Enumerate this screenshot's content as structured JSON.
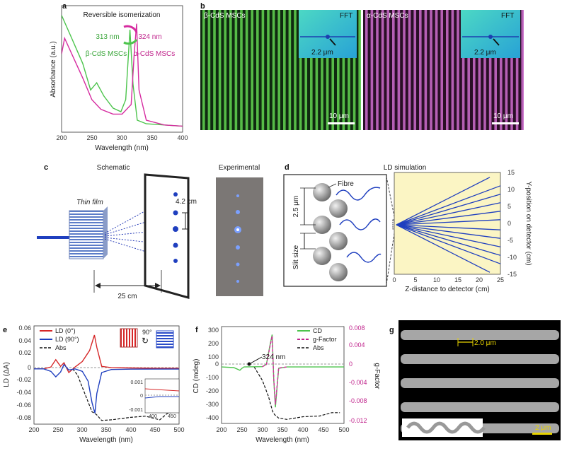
{
  "panels": {
    "a": {
      "label": "a",
      "ylabel": "Absorbance (a.u.)",
      "xlabel": "Wavelength (nm)",
      "xticks": [
        "200",
        "250",
        "300",
        "350",
        "400"
      ],
      "title": "Reversible isomerization",
      "arrow_left": "313 nm",
      "arrow_right": "324 nm",
      "legend_beta": "β-CdS MSCs",
      "legend_alpha": "α-CdS MSCs"
    },
    "b": {
      "label": "b",
      "image1": {
        "title": "β-CdS MSCs",
        "fft": "FFT",
        "spacing": "2.2 μm",
        "scale": "10 μm"
      },
      "image2": {
        "title": "α-CdS MSCs",
        "fft": "FFT",
        "spacing": "2.2 μm",
        "scale": "10 μm"
      }
    },
    "c": {
      "label": "c",
      "schematic": "Schematic",
      "experimental": "Experimental",
      "thin_film": "Thin film",
      "spot_distance": "4.2 cm",
      "screen_distance": "25 cm"
    },
    "d": {
      "label": "d",
      "title": "LD simulation",
      "fibre": "Fibre",
      "pitch": "2.5 μm",
      "slit": "Slit size",
      "xlabel": "Z-distance to detector (cm)",
      "ylabel": "Y-position on detector (cm)",
      "xticks": [
        "0",
        "5",
        "10",
        "15",
        "20",
        "25"
      ],
      "yticks": [
        "15",
        "10",
        "5",
        "0",
        "-5",
        "-10",
        "-15"
      ]
    },
    "e": {
      "label": "e",
      "ylabel": "LD (ΔA)",
      "xlabel": "Wavelength (nm)",
      "yticks": [
        "0.06",
        "0.04",
        "0.02",
        "0",
        "-0.02",
        "-0.04",
        "-0.06",
        "-0.08"
      ],
      "xticks": [
        "200",
        "250",
        "300",
        "350",
        "400",
        "450",
        "500"
      ],
      "legend": [
        "LD (0°)",
        "LD (90°)",
        "Abs"
      ],
      "rot": "90°",
      "inset": {
        "yticks": [
          "0.001",
          "0",
          "-0.001"
        ],
        "xticks": [
          "400",
          "450"
        ]
      }
    },
    "f": {
      "label": "f",
      "ylabel": "CD (mdeg)",
      "y2label": "g-Factor",
      "xlabel": "Wavelength (nm)",
      "yticks": [
        "300",
        "200",
        "100",
        "0",
        "-100",
        "-200",
        "-300",
        "-400"
      ],
      "y2ticks": [
        "0.008",
        "0.004",
        "0",
        "-0.004",
        "-0.008",
        "-0.012"
      ],
      "xticks": [
        "200",
        "250",
        "300",
        "350",
        "400",
        "450",
        "500"
      ],
      "legend": [
        "CD",
        "g-Factor",
        "Abs"
      ],
      "peak": "324 nm"
    },
    "g": {
      "label": "g",
      "spacing": "2.0 μm",
      "scale": "2 μm"
    }
  },
  "colors": {
    "beta": "#4cc44c",
    "alpha": "#d62ca0",
    "ld0": "#d62728",
    "ld90": "#1f3fbf",
    "sim_bg": "#fbf5c4"
  },
  "chart_data": [
    {
      "type": "line",
      "panel": "a",
      "xlabel": "Wavelength (nm)",
      "ylabel": "Absorbance (a.u.)",
      "xlim": [
        200,
        400
      ],
      "series": [
        {
          "name": "β-CdS MSCs",
          "x": [
            200,
            215,
            235,
            248,
            258,
            270,
            285,
            298,
            306,
            313,
            318,
            325,
            340,
            370,
            400
          ],
          "y": [
            0.92,
            0.75,
            0.52,
            0.3,
            0.36,
            0.25,
            0.15,
            0.12,
            0.22,
            0.8,
            0.35,
            0.05,
            0.02,
            0.01,
            0.0
          ]
        },
        {
          "name": "α-CdS MSCs",
          "x": [
            200,
            205,
            215,
            235,
            250,
            265,
            285,
            300,
            315,
            320,
            324,
            328,
            340,
            370,
            400
          ],
          "y": [
            0.6,
            0.73,
            0.62,
            0.4,
            0.22,
            0.14,
            0.1,
            0.1,
            0.18,
            0.6,
            0.85,
            0.3,
            0.05,
            0.01,
            0.0
          ]
        }
      ]
    },
    {
      "type": "line",
      "panel": "e",
      "xlabel": "Wavelength (nm)",
      "ylabel": "LD (ΔA)",
      "xlim": [
        200,
        500
      ],
      "ylim": [
        -0.09,
        0.07
      ],
      "series": [
        {
          "name": "LD (0°)",
          "x": [
            200,
            220,
            235,
            245,
            255,
            262,
            272,
            285,
            300,
            315,
            325,
            330,
            340,
            360,
            400,
            450,
            500
          ],
          "y": [
            0,
            0,
            0.003,
            0.015,
            0.004,
            0.01,
            -0.006,
            0.003,
            0.012,
            0.03,
            0.055,
            0.035,
            0.004,
            0.002,
            0.0015,
            0.001,
            0.0008
          ]
        },
        {
          "name": "LD (90°)",
          "x": [
            200,
            220,
            235,
            245,
            255,
            262,
            272,
            285,
            300,
            312,
            320,
            326,
            330,
            340,
            360,
            400,
            500
          ],
          "y": [
            0,
            0,
            -0.004,
            -0.013,
            -0.005,
            0.007,
            -0.002,
            0.0,
            -0.004,
            -0.02,
            -0.055,
            -0.072,
            -0.04,
            -0.006,
            -0.001,
            -0.0005,
            -0.0003
          ]
        },
        {
          "name": "Abs",
          "x": [
            280,
            290,
            300,
            310,
            320,
            325,
            330,
            340,
            360,
            400,
            430,
            460,
            475,
            490,
            500
          ],
          "y": [
            0,
            -0.01,
            -0.03,
            -0.05,
            -0.07,
            -0.072,
            -0.075,
            -0.084,
            -0.083,
            -0.079,
            -0.077,
            -0.083,
            -0.073,
            -0.07,
            -0.068
          ]
        }
      ]
    },
    {
      "type": "line",
      "panel": "f",
      "xlabel": "Wavelength (nm)",
      "ylabel": "CD (mdeg)",
      "xlim": [
        200,
        500
      ],
      "ylim": [
        -420,
        300
      ],
      "series": [
        {
          "name": "CD",
          "x": [
            200,
            230,
            245,
            250,
            255,
            300,
            310,
            318,
            324,
            328,
            332,
            340,
            360,
            500
          ],
          "y": [
            0,
            -5,
            -25,
            -10,
            0,
            2,
            20,
            150,
            240,
            -100,
            -300,
            -10,
            0,
            0
          ]
        },
        {
          "name": "g-Factor",
          "x": [
            300,
            310,
            318,
            324,
            328,
            332,
            340,
            360
          ],
          "y": [
            2,
            18,
            140,
            230,
            -90,
            -280,
            -8,
            0
          ]
        },
        {
          "name": "Abs",
          "x": [
            280,
            300,
            315,
            325,
            330,
            340,
            360,
            400,
            440,
            470,
            490
          ],
          "y": [
            0,
            -100,
            -220,
            -330,
            -355,
            -380,
            -390,
            -370,
            -365,
            -340,
            -340
          ]
        }
      ]
    }
  ]
}
